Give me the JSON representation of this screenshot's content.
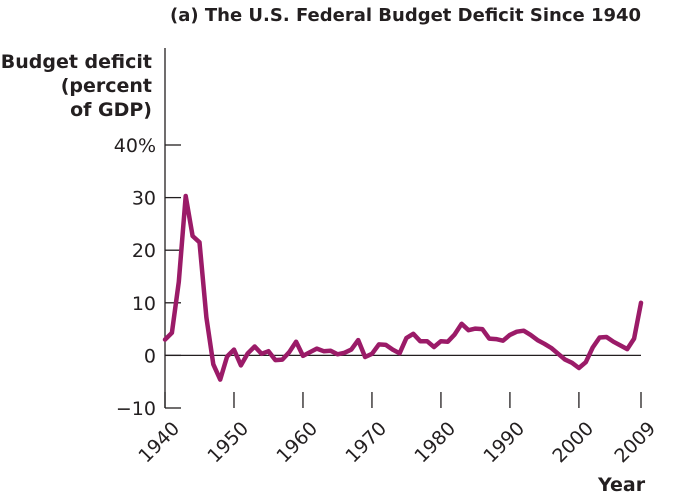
{
  "chart_data": {
    "type": "line",
    "title": "(a) The U.S. Federal Budget Deficit Since 1940",
    "ylabel_lines": [
      "Budget deficit",
      "(percent",
      "of GDP)"
    ],
    "xlabel": "Year",
    "x_ticks": [
      "1940",
      "1950",
      "1960",
      "1970",
      "1980",
      "1990",
      "2000",
      "2009"
    ],
    "y_ticks": [
      "−10",
      "0",
      "10",
      "20",
      "30",
      "40%"
    ],
    "y_tick_values": [
      -10,
      0,
      10,
      20,
      30,
      40
    ],
    "x_tick_values": [
      1940,
      1950,
      1960,
      1970,
      1980,
      1990,
      2000,
      2009
    ],
    "xlim": [
      1940,
      2009
    ],
    "ylim": [
      -10,
      40
    ],
    "series": [
      {
        "name": "Budget deficit",
        "color": "#9b1b68",
        "x": [
          1940,
          1941,
          1942,
          1943,
          1944,
          1945,
          1946,
          1947,
          1948,
          1949,
          1950,
          1951,
          1952,
          1953,
          1954,
          1955,
          1956,
          1957,
          1958,
          1959,
          1960,
          1961,
          1962,
          1963,
          1964,
          1965,
          1966,
          1967,
          1968,
          1969,
          1970,
          1971,
          1972,
          1973,
          1974,
          1975,
          1976,
          1977,
          1978,
          1979,
          1980,
          1981,
          1982,
          1983,
          1984,
          1985,
          1986,
          1987,
          1988,
          1989,
          1990,
          1991,
          1992,
          1993,
          1994,
          1995,
          1996,
          1997,
          1998,
          1999,
          2000,
          2001,
          2002,
          2003,
          2004,
          2005,
          2006,
          2007,
          2008,
          2009
        ],
        "y": [
          3,
          4.3,
          14,
          30.3,
          22.7,
          21.5,
          7.2,
          -1.7,
          -4.6,
          -0.2,
          1.1,
          -1.9,
          0.4,
          1.7,
          0.3,
          0.8,
          -0.9,
          -0.8,
          0.6,
          2.6,
          -0.1,
          0.6,
          1.3,
          0.8,
          0.9,
          0.2,
          0.5,
          1.1,
          2.9,
          -0.3,
          0.3,
          2.1,
          2.0,
          1.1,
          0.4,
          3.3,
          4.1,
          2.7,
          2.7,
          1.6,
          2.7,
          2.6,
          4.0,
          6.0,
          4.8,
          5.1,
          5.0,
          3.2,
          3.1,
          2.8,
          3.9,
          4.5,
          4.7,
          3.9,
          2.9,
          2.2,
          1.4,
          0.3,
          -0.8,
          -1.4,
          -2.4,
          -1.3,
          1.5,
          3.4,
          3.5,
          2.6,
          1.9,
          1.2,
          3.2,
          10.0
        ]
      }
    ]
  }
}
